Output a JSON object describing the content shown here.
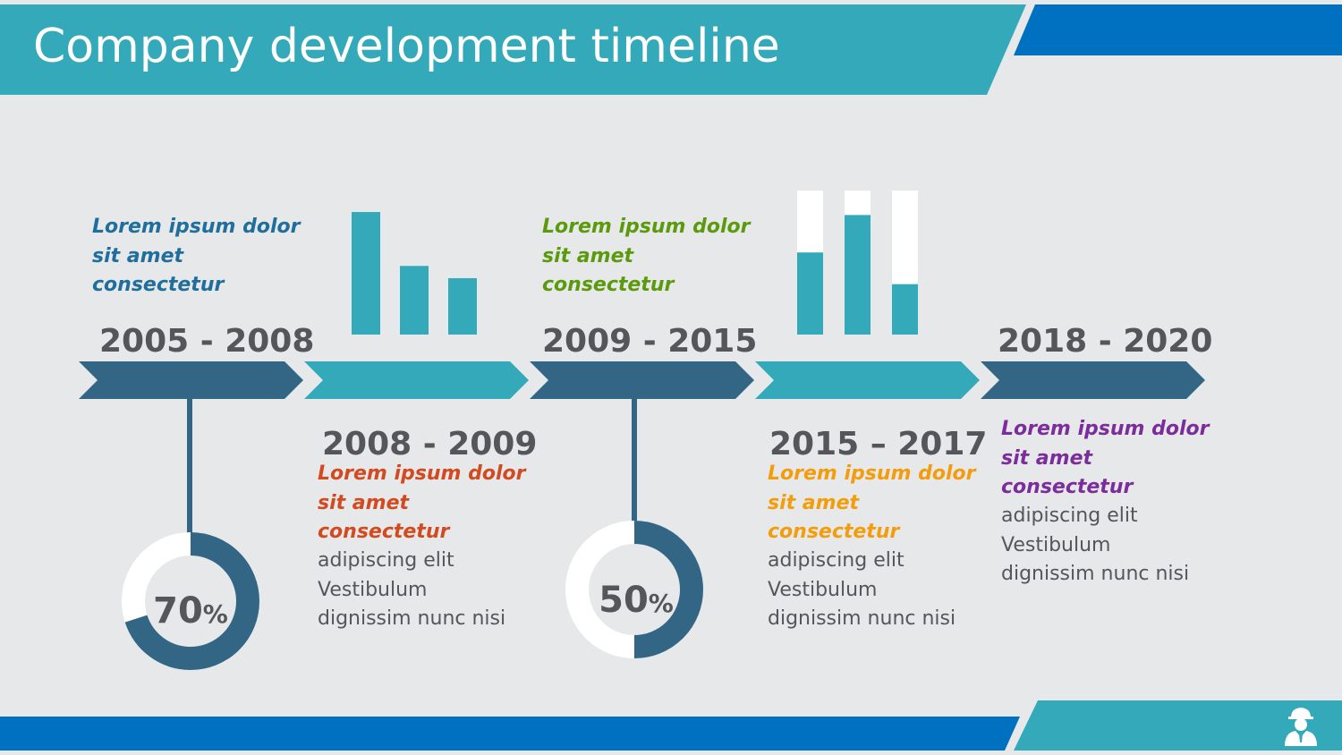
{
  "title": "Company development timeline",
  "colors": {
    "background": "#e7e8ea",
    "header_teal": "#33a9b9",
    "header_blue": "#0070c0",
    "arrow_dark": "#336685",
    "arrow_teal": "#33a9b9",
    "bar_teal": "#33a9b9",
    "bar_track": "#ffffff",
    "text_gray": "#55565a"
  },
  "stages": [
    {
      "period": "2005 - 2008",
      "heading": [
        "Lorem ipsum dolor",
        "sit amet",
        "consectetur"
      ],
      "heading_color": "#1f6e9c",
      "body": [],
      "donut": {
        "percent": 70,
        "number": "70",
        "symbol": "%"
      }
    },
    {
      "period": "2008 - 2009",
      "heading": [
        "Lorem ipsum dolor",
        "sit amet",
        "consectetur"
      ],
      "heading_color": "#d24a1f",
      "body": [
        "adipiscing elit",
        "Vestibulum",
        "dignissim nunc nisi"
      ],
      "bars": [
        1.0,
        0.56,
        0.46
      ]
    },
    {
      "period": "2009 - 2015",
      "heading": [
        "Lorem ipsum dolor",
        "sit amet",
        "consectetur"
      ],
      "heading_color": "#5b9a0c",
      "body": [],
      "donut": {
        "percent": 50,
        "number": "50",
        "symbol": "%"
      }
    },
    {
      "period": "2015 – 2017",
      "heading": [
        "Lorem ipsum dolor",
        "sit amet",
        "consectetur"
      ],
      "heading_color": "#f39c0c",
      "body": [
        "adipiscing elit",
        "Vestibulum",
        "dignissim nunc nisi"
      ],
      "stacked_bars": [
        0.57,
        0.83,
        0.35
      ]
    },
    {
      "period": "2018 - 2020",
      "heading": [
        "Lorem ipsum dolor",
        "sit amet",
        "consectetur"
      ],
      "heading_color": "#7a2d9b",
      "body": [
        "adipiscing elit",
        "Vestibulum",
        "dignissim nunc nisi"
      ]
    }
  ],
  "footer_icon": "engineer-icon"
}
